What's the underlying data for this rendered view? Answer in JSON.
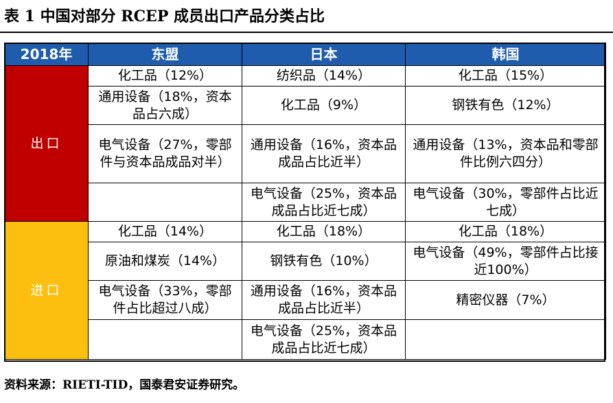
{
  "title": "表 1  中国对部分 RCEP 成员出口产品分类占比",
  "colors": {
    "header_bg": "#1f5cae",
    "export_bg": "#c00000",
    "import_bg": "#fcbf10",
    "section_text": "#ffffff"
  },
  "table": {
    "headers": [
      "2018年",
      "东盟",
      "日本",
      "韩国"
    ],
    "export_label": "出口",
    "import_label": "进口",
    "export_rows": [
      [
        "化工品（12%）",
        "纺织品（14%）",
        "化工品（15%）"
      ],
      [
        "通用设备（18%，资本品占六成）",
        "化工品（9%）",
        "钢铁有色（12%）"
      ],
      [
        "电气设备（27%，零部件与资本品成品对半）",
        "通用设备（16%，资本品成品占比近半）",
        "通用设备（13%，资本品和零部件比例六四分）"
      ],
      [
        "",
        "电气设备（25%，资本品成品占比近七成）",
        "电气设备（30%，零部件占比近七成）"
      ]
    ],
    "import_rows": [
      [
        "化工品（14%）",
        "化工品（18%）",
        "化工品（18%）"
      ],
      [
        "原油和煤炭（14%）",
        "钢铁有色（10%）",
        "电气设备（49%，零部件占比接近100%）"
      ],
      [
        "电气设备（33%，零部件占比超过八成）",
        "通用设备（16%，资本品成品占比近半）",
        "精密仪器（7%）"
      ],
      [
        "",
        "电气设备（25%，资本品成品占比近七成）",
        ""
      ]
    ]
  },
  "source": "资料来源：RIETI-TID，国泰君安证券研究。"
}
